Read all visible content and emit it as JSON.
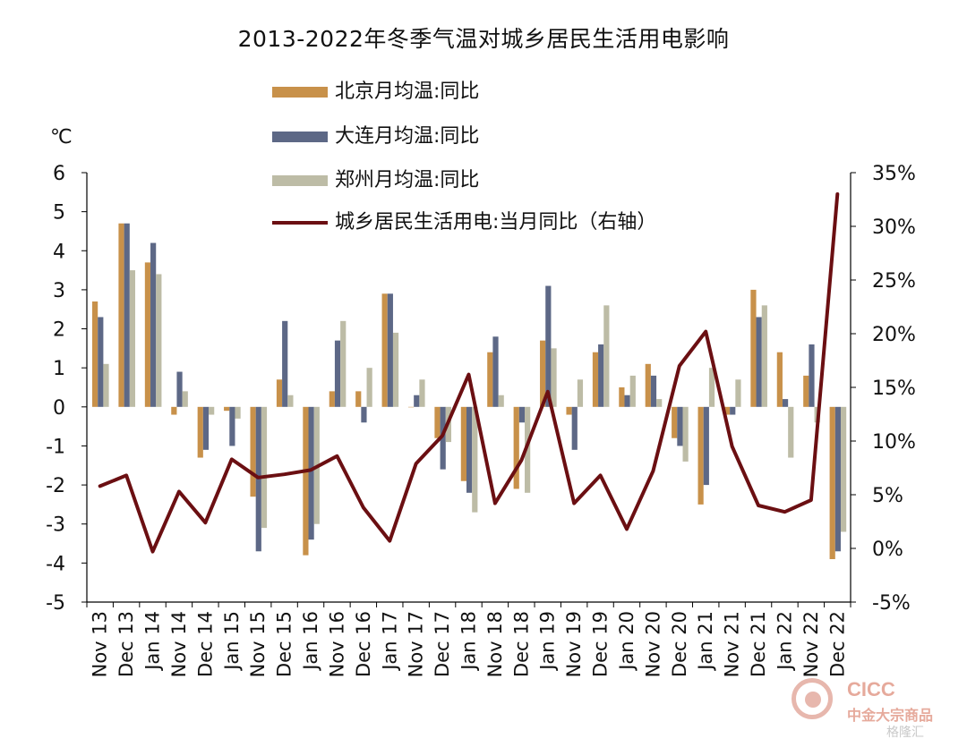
{
  "chart_data": {
    "type": "bar",
    "title": "2013-2022年冬季气温对城乡居民生活用电影响",
    "left_axis_unit": "℃",
    "categories": [
      "Nov 13",
      "Dec 13",
      "Jan 14",
      "Nov 14",
      "Dec 14",
      "Jan 15",
      "Nov 15",
      "Dec 15",
      "Jan 16",
      "Nov 16",
      "Dec 16",
      "Jan 17",
      "Nov 17",
      "Dec 17",
      "Jan 18",
      "Nov 18",
      "Dec 18",
      "Jan 19",
      "Nov 19",
      "Dec 19",
      "Jan 20",
      "Nov 20",
      "Dec 20",
      "Jan 21",
      "Nov 21",
      "Dec 21",
      "Jan 22",
      "Nov 22",
      "Dec 22"
    ],
    "ylim_left": [
      -5,
      6
    ],
    "yticks_left": [
      "6",
      "5",
      "4",
      "3",
      "2",
      "1",
      "0",
      "-1",
      "-2",
      "-3",
      "-4",
      "-5"
    ],
    "ylim_right": [
      -5,
      35
    ],
    "yticks_right": [
      "35%",
      "30%",
      "25%",
      "20%",
      "15%",
      "10%",
      "5%",
      "0%",
      "-5%"
    ],
    "series": [
      {
        "name": "北京月均温:同比",
        "kind": "bar",
        "axis": "left",
        "color": "#c8914a",
        "values": [
          2.7,
          4.7,
          3.7,
          -0.2,
          -1.3,
          -0.1,
          -2.3,
          0.7,
          -3.8,
          0.4,
          0.4,
          2.9,
          0.0,
          -0.8,
          -1.9,
          1.4,
          -2.1,
          1.7,
          -0.2,
          1.4,
          0.5,
          1.1,
          -0.8,
          -2.5,
          -0.2,
          3.0,
          1.4,
          0.8,
          -3.9
        ]
      },
      {
        "name": "大连月均温:同比",
        "kind": "bar",
        "axis": "left",
        "color": "#5d6886",
        "values": [
          2.3,
          4.7,
          4.2,
          0.9,
          -1.1,
          -1.0,
          -3.7,
          2.2,
          -3.4,
          1.7,
          -0.4,
          2.9,
          0.3,
          -1.6,
          -2.2,
          1.8,
          -0.4,
          3.1,
          -1.1,
          1.6,
          0.3,
          0.8,
          -1.0,
          -2.0,
          -0.2,
          2.3,
          0.2,
          1.6,
          -3.7
        ]
      },
      {
        "name": "郑州月均温:同比",
        "kind": "bar",
        "axis": "left",
        "color": "#bdbca6",
        "values": [
          1.1,
          3.5,
          3.4,
          0.4,
          -0.2,
          -0.3,
          -3.1,
          0.3,
          -3.0,
          2.2,
          1.0,
          1.9,
          0.7,
          -0.9,
          -2.7,
          0.3,
          -2.2,
          1.5,
          0.7,
          2.6,
          0.8,
          0.2,
          -1.4,
          1.0,
          0.7,
          2.6,
          -1.3,
          -0.4,
          -3.2
        ]
      },
      {
        "name": "城乡居民生活用电:当月同比（右轴）",
        "kind": "line",
        "axis": "right",
        "color": "#6b0f12",
        "values": [
          5.8,
          6.8,
          -0.3,
          5.3,
          2.4,
          8.3,
          6.6,
          6.9,
          7.3,
          8.6,
          3.8,
          0.7,
          7.9,
          10.5,
          16.2,
          4.2,
          8.2,
          14.6,
          4.2,
          6.8,
          1.8,
          7.2,
          17.0,
          20.2,
          9.5,
          4.0,
          3.4,
          4.5,
          33.0
        ]
      }
    ],
    "legend_position": "top-left",
    "grid": false
  },
  "watermark": {
    "brand": "CICC",
    "sub": "中金大宗商品",
    "source": "格隆汇"
  }
}
